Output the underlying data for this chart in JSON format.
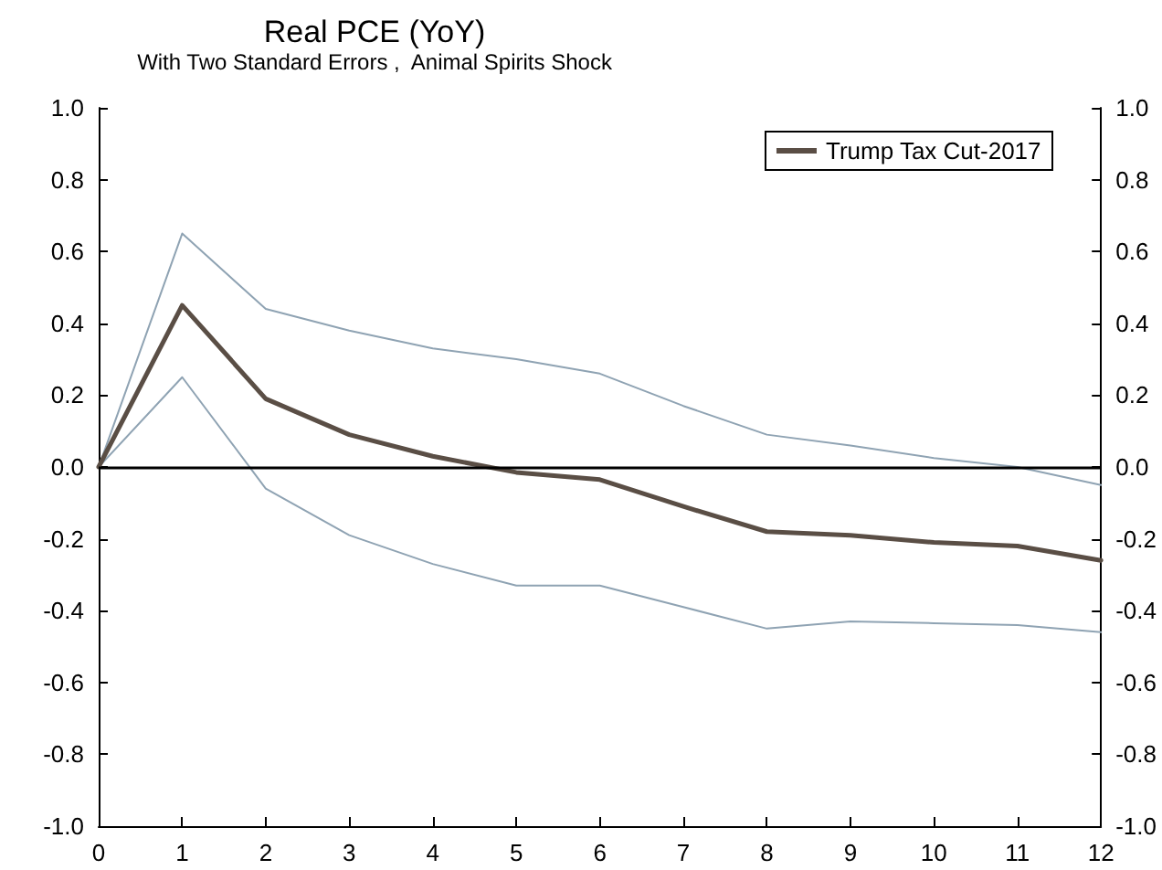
{
  "chart_data": {
    "type": "line",
    "title": "Real PCE (YoY)",
    "subtitle": "With Two Standard Errors ,  Animal Spirits Shock",
    "x": [
      0,
      1,
      2,
      3,
      4,
      5,
      6,
      7,
      8,
      9,
      10,
      11,
      12
    ],
    "series": [
      {
        "color": "#8fa3b3",
        "values": [
          0,
          0.65,
          0.44,
          0.38,
          0.33,
          0.3,
          0.26,
          0.17,
          0.09,
          0.06,
          0.025,
          0.0,
          -0.05
        ]
      },
      {
        "color": "#8fa3b3",
        "values": [
          0,
          0.25,
          -0.06,
          -0.19,
          -0.27,
          -0.33,
          -0.33,
          -0.39,
          -0.45,
          -0.43,
          -0.435,
          -0.44,
          -0.46
        ]
      },
      {
        "name": "Trump Tax Cut-2017",
        "color": "#5a4e45",
        "values": [
          0,
          0.45,
          0.19,
          0.09,
          0.03,
          -0.015,
          -0.035,
          -0.11,
          -0.18,
          -0.19,
          -0.21,
          -0.22,
          -0.26
        ]
      }
    ],
    "xlim": [
      0,
      12
    ],
    "xticks": [
      0,
      1,
      2,
      3,
      4,
      5,
      6,
      7,
      8,
      9,
      10,
      11,
      12
    ],
    "ylim": [
      -1,
      1
    ],
    "yticks": [
      {
        "value": -1,
        "label": "-1.0"
      },
      {
        "value": -0.8,
        "label": "-0.8"
      },
      {
        "value": -0.6,
        "label": "-0.6"
      },
      {
        "value": -0.4,
        "label": "-0.4"
      },
      {
        "value": -0.2,
        "label": "-0.2"
      },
      {
        "value": 0,
        "label": "0.0"
      },
      {
        "value": 0.2,
        "label": "0.2"
      },
      {
        "value": 0.4,
        "label": "0.4"
      },
      {
        "value": 0.6,
        "label": "0.6"
      },
      {
        "value": 0.8,
        "label": "0.8"
      },
      {
        "value": 1,
        "label": "1.0"
      }
    ],
    "y2lim": [
      -1,
      1
    ],
    "y2ticks": [
      {
        "value": -1,
        "label": "-1.0"
      },
      {
        "value": -0.8,
        "label": "-0.8"
      },
      {
        "value": -0.6,
        "label": "-0.6"
      },
      {
        "value": -0.4,
        "label": "-0.4"
      },
      {
        "value": -0.2,
        "label": "-0.2"
      },
      {
        "value": 0,
        "label": "0.0"
      },
      {
        "value": 0.2,
        "label": "0.2"
      },
      {
        "value": 0.4,
        "label": "0.4"
      },
      {
        "value": 0.6,
        "label": "0.6"
      },
      {
        "value": 0.8,
        "label": "0.8"
      },
      {
        "value": 1,
        "label": "1.0"
      }
    ],
    "ref_lines": [
      {
        "axis": "y",
        "value": 0,
        "color": "#000000"
      }
    ],
    "grid": false,
    "legend": "top right",
    "marker": "none",
    "line_style": "solid"
  }
}
